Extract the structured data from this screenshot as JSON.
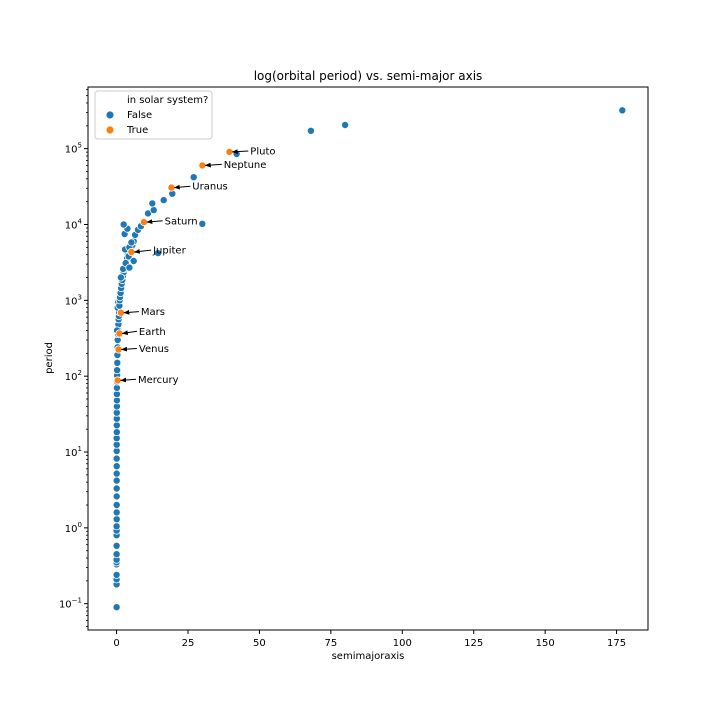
{
  "chart_data": {
    "type": "scatter",
    "title": "log(orbital period) vs. semi-major axis",
    "xlabel": "semimajoraxis",
    "ylabel": "period",
    "x_scale": "linear",
    "y_scale": "log",
    "xlim": [
      -10,
      186
    ],
    "ylim": [
      0.045,
      650000
    ],
    "x_ticks": [
      0,
      25,
      50,
      75,
      100,
      125,
      150,
      175
    ],
    "y_ticks": [
      {
        "value": 0.1,
        "base": "10",
        "exp": "−1"
      },
      {
        "value": 1,
        "base": "10",
        "exp": "0"
      },
      {
        "value": 10,
        "base": "10",
        "exp": "1"
      },
      {
        "value": 100,
        "base": "10",
        "exp": "2"
      },
      {
        "value": 1000,
        "base": "10",
        "exp": "3"
      },
      {
        "value": 10000,
        "base": "10",
        "exp": "4"
      },
      {
        "value": 100000,
        "base": "10",
        "exp": "5"
      }
    ],
    "grid": false,
    "legend": {
      "title": "in solar system?",
      "placement": "upper-left",
      "entries": [
        {
          "label": "False",
          "color": "#1f77b4"
        },
        {
          "label": "True",
          "color": "#ff7f0e"
        }
      ]
    },
    "series": [
      {
        "key": "False",
        "color": "#1f77b4",
        "points": [
          [
            0.02,
            0.09
          ],
          [
            0.02,
            0.18
          ],
          [
            0.02,
            0.21
          ],
          [
            0.02,
            0.24
          ],
          [
            0.02,
            0.33
          ],
          [
            0.02,
            0.35
          ],
          [
            0.02,
            0.38
          ],
          [
            0.02,
            0.45
          ],
          [
            0.02,
            0.58
          ],
          [
            0.02,
            0.8
          ],
          [
            0.02,
            0.92
          ],
          [
            0.02,
            1.05
          ],
          [
            0.03,
            1.3
          ],
          [
            0.03,
            1.6
          ],
          [
            0.03,
            2.0
          ],
          [
            0.03,
            2.6
          ],
          [
            0.04,
            3.3
          ],
          [
            0.04,
            4.2
          ],
          [
            0.04,
            5.2
          ],
          [
            0.05,
            6.5
          ],
          [
            0.05,
            8.2
          ],
          [
            0.05,
            10.3
          ],
          [
            0.06,
            12.5
          ],
          [
            0.06,
            15.2
          ],
          [
            0.07,
            18.3
          ],
          [
            0.07,
            22.5
          ],
          [
            0.08,
            27.5
          ],
          [
            0.09,
            33
          ],
          [
            0.1,
            40
          ],
          [
            0.1,
            48
          ],
          [
            0.12,
            58
          ],
          [
            0.13,
            70
          ],
          [
            0.15,
            85
          ],
          [
            0.18,
            102
          ],
          [
            0.2,
            120
          ],
          [
            0.25,
            150
          ],
          [
            0.3,
            190
          ],
          [
            0.35,
            240
          ],
          [
            0.4,
            300
          ],
          [
            0.5,
            360
          ],
          [
            0.55,
            410
          ],
          [
            0.65,
            480
          ],
          [
            0.7,
            560
          ],
          [
            0.8,
            620
          ],
          [
            0.9,
            700
          ],
          [
            0.2,
            400
          ],
          [
            0.4,
            800
          ],
          [
            0.6,
            950
          ],
          [
            1.0,
            850
          ],
          [
            1.1,
            1000
          ],
          [
            1.2,
            1100
          ],
          [
            1.4,
            1250
          ],
          [
            1.6,
            1450
          ],
          [
            1.8,
            1650
          ],
          [
            2.0,
            1850
          ],
          [
            2.2,
            2100
          ],
          [
            2.5,
            2350
          ],
          [
            2.8,
            2600
          ],
          [
            3.1,
            2900
          ],
          [
            3.4,
            3200
          ],
          [
            3.7,
            3600
          ],
          [
            4.0,
            4000
          ],
          [
            1.5,
            2000
          ],
          [
            2.3,
            2600
          ],
          [
            3.2,
            3100
          ],
          [
            4.2,
            3800
          ],
          [
            5.0,
            4600
          ],
          [
            5.5,
            5300
          ],
          [
            6.0,
            6000
          ],
          [
            3.0,
            4700
          ],
          [
            4.5,
            5000
          ],
          [
            5.2,
            5800
          ],
          [
            2.8,
            7500
          ],
          [
            3.8,
            8800
          ],
          [
            2.5,
            10000
          ],
          [
            6.5,
            7300
          ],
          [
            7.5,
            8500
          ],
          [
            8.5,
            9500
          ],
          [
            9.5,
            11000
          ],
          [
            11.0,
            14000
          ],
          [
            13.0,
            15500
          ],
          [
            12.5,
            19000
          ],
          [
            16.5,
            21000
          ],
          [
            19.5,
            25500
          ],
          [
            27.0,
            42000
          ],
          [
            14.5,
            4200
          ],
          [
            4.5,
            2700
          ],
          [
            6.0,
            3300
          ],
          [
            30.0,
            10200
          ],
          [
            42.0,
            85000
          ],
          [
            68.0,
            172000
          ],
          [
            80.0,
            205000
          ],
          [
            177.0,
            320000
          ]
        ]
      },
      {
        "key": "True",
        "color": "#ff7f0e",
        "points": [
          [
            0.39,
            88
          ],
          [
            0.72,
            225
          ],
          [
            1.0,
            365
          ],
          [
            1.52,
            687
          ],
          [
            5.2,
            4333
          ],
          [
            9.58,
            10759
          ],
          [
            19.2,
            30687
          ],
          [
            30.05,
            60190
          ],
          [
            39.48,
            90560
          ]
        ]
      }
    ],
    "annotations": [
      {
        "text": "Mercury",
        "x": 0.39,
        "y": 88,
        "tx": 7.5,
        "ty": 91
      },
      {
        "text": "Venus",
        "x": 0.72,
        "y": 225,
        "tx": 7.8,
        "ty": 232
      },
      {
        "text": "Earth",
        "x": 1.0,
        "y": 365,
        "tx": 7.8,
        "ty": 390
      },
      {
        "text": "Mars",
        "x": 1.52,
        "y": 687,
        "tx": 8.5,
        "ty": 710
      },
      {
        "text": "Jupiter",
        "x": 5.2,
        "y": 4333,
        "tx": 12.8,
        "ty": 4600
      },
      {
        "text": "Saturn",
        "x": 9.58,
        "y": 10759,
        "tx": 16.8,
        "ty": 11200
      },
      {
        "text": "Uranus",
        "x": 19.2,
        "y": 30687,
        "tx": 26.5,
        "ty": 32000
      },
      {
        "text": "Neptune",
        "x": 30.05,
        "y": 60190,
        "tx": 37.5,
        "ty": 62000
      },
      {
        "text": "Pluto",
        "x": 39.48,
        "y": 90560,
        "tx": 46.8,
        "ty": 93000
      }
    ]
  }
}
